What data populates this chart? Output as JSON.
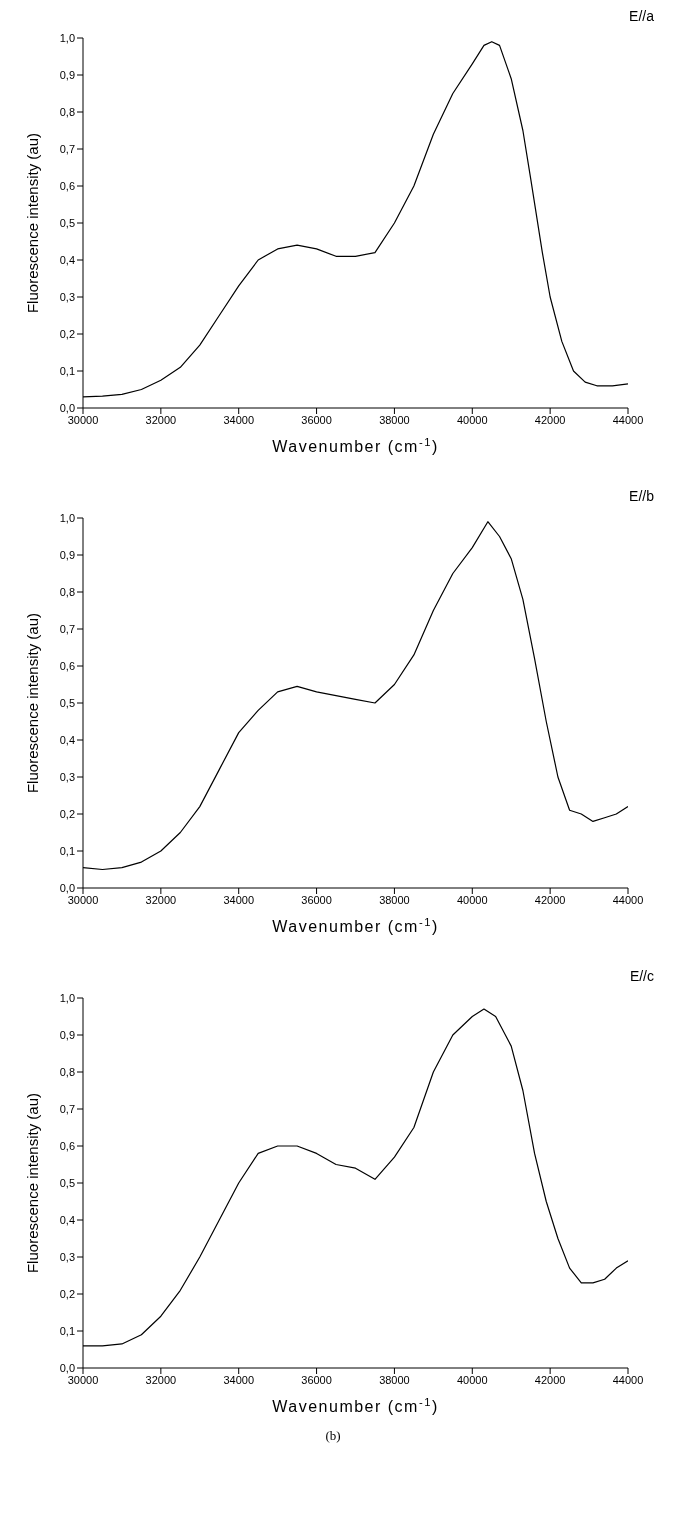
{
  "chart_data": [
    {
      "type": "line",
      "title": "E//a",
      "xlabel": "Wavenumber (cm$^{-1}$)",
      "ylabel": "Fluorescence intensity (au)",
      "color": "#000000",
      "x": [
        30000,
        30500,
        31000,
        31500,
        32000,
        32500,
        33000,
        33500,
        34000,
        34500,
        35000,
        35500,
        36000,
        36500,
        37000,
        37500,
        38000,
        38500,
        39000,
        39500,
        40000,
        40300,
        40500,
        40700,
        41000,
        41300,
        41500,
        41800,
        42000,
        42300,
        42600,
        42900,
        43200,
        43600,
        44000
      ],
      "values": [
        0.03,
        0.032,
        0.037,
        0.05,
        0.075,
        0.11,
        0.17,
        0.25,
        0.33,
        0.4,
        0.43,
        0.44,
        0.43,
        0.41,
        0.41,
        0.42,
        0.5,
        0.6,
        0.74,
        0.85,
        0.93,
        0.98,
        0.99,
        0.98,
        0.89,
        0.75,
        0.62,
        0.42,
        0.3,
        0.18,
        0.1,
        0.07,
        0.06,
        0.06,
        0.065
      ],
      "xlim": [
        30000,
        44000
      ],
      "xticks": [
        30000,
        32000,
        34000,
        36000,
        38000,
        40000,
        42000,
        44000
      ],
      "ylim": [
        0,
        1
      ],
      "yticks": [
        {
          "value": 0,
          "label": "0,0"
        },
        {
          "value": 0.1,
          "label": "0,1"
        },
        {
          "value": 0.2,
          "label": "0,2"
        },
        {
          "value": 0.3,
          "label": "0,3"
        },
        {
          "value": 0.4,
          "label": "0,4"
        },
        {
          "value": 0.5,
          "label": "0,5"
        },
        {
          "value": 0.6,
          "label": "0,6"
        },
        {
          "value": 0.7,
          "label": "0,7"
        },
        {
          "value": 0.8,
          "label": "0,8"
        },
        {
          "value": 0.9,
          "label": "0,9"
        },
        {
          "value": 1,
          "label": "1,0"
        }
      ]
    },
    {
      "type": "line",
      "title": "E//b",
      "xlabel": "Wavenumber (cm$^{-1}$)",
      "ylabel": "Fluorescence intensity (au)",
      "color": "#000000",
      "x": [
        30000,
        30500,
        31000,
        31500,
        32000,
        32500,
        33000,
        33500,
        34000,
        34500,
        35000,
        35500,
        36000,
        36500,
        37000,
        37500,
        38000,
        38500,
        39000,
        39500,
        40000,
        40400,
        40700,
        41000,
        41300,
        41600,
        41900,
        42200,
        42500,
        42800,
        43100,
        43400,
        43700,
        44000
      ],
      "values": [
        0.055,
        0.05,
        0.055,
        0.07,
        0.1,
        0.15,
        0.22,
        0.32,
        0.42,
        0.48,
        0.53,
        0.545,
        0.53,
        0.52,
        0.51,
        0.5,
        0.55,
        0.63,
        0.75,
        0.85,
        0.92,
        0.99,
        0.95,
        0.89,
        0.78,
        0.62,
        0.45,
        0.3,
        0.21,
        0.2,
        0.18,
        0.19,
        0.2,
        0.22
      ],
      "xlim": [
        30000,
        44000
      ],
      "xticks": [
        30000,
        32000,
        34000,
        36000,
        38000,
        40000,
        42000,
        44000
      ],
      "ylim": [
        0,
        1
      ],
      "yticks": [
        {
          "value": 0,
          "label": "0,0"
        },
        {
          "value": 0.1,
          "label": "0,1"
        },
        {
          "value": 0.2,
          "label": "0,2"
        },
        {
          "value": 0.3,
          "label": "0,3"
        },
        {
          "value": 0.4,
          "label": "0,4"
        },
        {
          "value": 0.5,
          "label": "0,5"
        },
        {
          "value": 0.6,
          "label": "0,6"
        },
        {
          "value": 0.7,
          "label": "0,7"
        },
        {
          "value": 0.8,
          "label": "0,8"
        },
        {
          "value": 0.9,
          "label": "0,9"
        },
        {
          "value": 1,
          "label": "1,0"
        }
      ]
    },
    {
      "type": "line",
      "title": "E//c",
      "xlabel": "Wavenumber (cm$^{-1}$)",
      "ylabel": "Fluorescence intensity (au)",
      "color": "#000000",
      "x": [
        30000,
        30500,
        31000,
        31500,
        32000,
        32500,
        33000,
        33500,
        34000,
        34500,
        35000,
        35500,
        36000,
        36500,
        37000,
        37500,
        38000,
        38500,
        39000,
        39500,
        40000,
        40300,
        40600,
        41000,
        41300,
        41600,
        41900,
        42200,
        42500,
        42800,
        43100,
        43400,
        43700,
        44000
      ],
      "values": [
        0.06,
        0.06,
        0.065,
        0.09,
        0.14,
        0.21,
        0.3,
        0.4,
        0.5,
        0.58,
        0.6,
        0.6,
        0.58,
        0.55,
        0.54,
        0.51,
        0.57,
        0.65,
        0.8,
        0.9,
        0.95,
        0.97,
        0.95,
        0.87,
        0.75,
        0.58,
        0.45,
        0.35,
        0.27,
        0.23,
        0.23,
        0.24,
        0.27,
        0.29
      ],
      "xlim": [
        30000,
        44000
      ],
      "xticks": [
        30000,
        32000,
        34000,
        36000,
        38000,
        40000,
        42000,
        44000
      ],
      "ylim": [
        0,
        1
      ],
      "yticks": [
        {
          "value": 0,
          "label": "0,0"
        },
        {
          "value": 0.1,
          "label": "0,1"
        },
        {
          "value": 0.2,
          "label": "0,2"
        },
        {
          "value": 0.3,
          "label": "0,3"
        },
        {
          "value": 0.4,
          "label": "0,4"
        },
        {
          "value": 0.5,
          "label": "0,5"
        },
        {
          "value": 0.6,
          "label": "0,6"
        },
        {
          "value": 0.7,
          "label": "0,7"
        },
        {
          "value": 0.8,
          "label": "0,8"
        },
        {
          "value": 0.9,
          "label": "0,9"
        },
        {
          "value": 1,
          "label": "1,0"
        }
      ],
      "annotations": [
        "(b)"
      ]
    }
  ]
}
